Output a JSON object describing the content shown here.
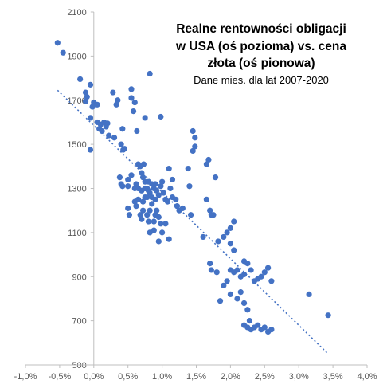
{
  "chart_data": {
    "type": "scatter",
    "title": [
      "Realne rentowności obligacji",
      "w USA (oś pozioma) vs. cena",
      "złota (oś pionowa)"
    ],
    "subtitle": "Dane mies. dla lat 2007-2020",
    "xlabel": "",
    "ylabel": "",
    "xlim": [
      -1.0,
      4.0
    ],
    "ylim": [
      500,
      2100
    ],
    "x_ticks": [
      -1.0,
      -0.5,
      0.0,
      0.5,
      1.0,
      1.5,
      2.0,
      2.5,
      3.0,
      3.5,
      4.0
    ],
    "x_tick_labels": [
      "-1,0%",
      "-0,5%",
      "0,0%",
      "0,5%",
      "1,0%",
      "1,5%",
      "2,0%",
      "2,5%",
      "3,0%",
      "3,5%",
      "4,0%"
    ],
    "y_ticks": [
      500,
      700,
      900,
      1100,
      1300,
      1500,
      1700,
      1900,
      2100
    ],
    "y_tick_labels": [
      "500",
      "700",
      "900",
      "1100",
      "1300",
      "1500",
      "1700",
      "1900",
      "2100"
    ],
    "grid": false,
    "colors": {
      "points": "#4472C4",
      "trendline": "#4472C4",
      "axis": "#BFBFBF"
    },
    "trendline": {
      "type": "linear",
      "style": "dotted",
      "x": [
        -0.53,
        3.43
      ],
      "y": [
        1745,
        550
      ]
    },
    "points": [
      [
        -0.53,
        1960
      ],
      [
        -0.45,
        1915
      ],
      [
        -0.2,
        1795
      ],
      [
        -0.12,
        1735
      ],
      [
        -0.1,
        1715
      ],
      [
        -0.12,
        1695
      ],
      [
        -0.05,
        1770
      ],
      [
        -0.05,
        1620
      ],
      [
        0.0,
        1690
      ],
      [
        -0.02,
        1670
      ],
      [
        0.05,
        1680
      ],
      [
        0.05,
        1600
      ],
      [
        0.08,
        1570
      ],
      [
        0.1,
        1590
      ],
      [
        0.12,
        1560
      ],
      [
        0.15,
        1600
      ],
      [
        0.18,
        1580
      ],
      [
        0.2,
        1595
      ],
      [
        0.22,
        1540
      ],
      [
        0.28,
        1735
      ],
      [
        0.33,
        1680
      ],
      [
        0.35,
        1700
      ],
      [
        0.3,
        1530
      ],
      [
        0.4,
        1500
      ],
      [
        0.42,
        1570
      ],
      [
        0.43,
        1475
      ],
      [
        0.45,
        1480
      ],
      [
        0.55,
        1710
      ],
      [
        0.55,
        1750
      ],
      [
        0.58,
        1650
      ],
      [
        0.6,
        1690
      ],
      [
        0.63,
        1560
      ],
      [
        0.75,
        1620
      ],
      [
        0.82,
        1820
      ],
      [
        0.98,
        1625
      ],
      [
        -0.05,
        1475
      ],
      [
        0.4,
        1320
      ],
      [
        0.38,
        1350
      ],
      [
        0.42,
        1310
      ],
      [
        0.5,
        1340
      ],
      [
        0.55,
        1360
      ],
      [
        0.5,
        1210
      ],
      [
        0.52,
        1180
      ],
      [
        0.5,
        1310
      ],
      [
        0.6,
        1300
      ],
      [
        0.62,
        1320
      ],
      [
        0.65,
        1410
      ],
      [
        0.68,
        1400
      ],
      [
        0.7,
        1370
      ],
      [
        0.72,
        1350
      ],
      [
        0.73,
        1410
      ],
      [
        0.75,
        1330
      ],
      [
        0.78,
        1300
      ],
      [
        0.8,
        1290
      ],
      [
        0.82,
        1280
      ],
      [
        0.85,
        1320
      ],
      [
        0.88,
        1300
      ],
      [
        0.9,
        1320
      ],
      [
        0.92,
        1290
      ],
      [
        0.95,
        1270
      ],
      [
        0.98,
        1310
      ],
      [
        1.0,
        1330
      ],
      [
        1.02,
        1280
      ],
      [
        1.05,
        1250
      ],
      [
        1.08,
        1240
      ],
      [
        1.1,
        1390
      ],
      [
        1.12,
        1300
      ],
      [
        1.15,
        1260
      ],
      [
        1.2,
        1250
      ],
      [
        1.22,
        1220
      ],
      [
        1.25,
        1200
      ],
      [
        1.3,
        1210
      ],
      [
        0.62,
        1220
      ],
      [
        0.65,
        1250
      ],
      [
        0.68,
        1180
      ],
      [
        0.7,
        1160
      ],
      [
        0.72,
        1200
      ],
      [
        0.75,
        1260
      ],
      [
        0.78,
        1180
      ],
      [
        0.8,
        1150
      ],
      [
        0.82,
        1200
      ],
      [
        0.85,
        1230
      ],
      [
        0.88,
        1150
      ],
      [
        0.9,
        1180
      ],
      [
        0.92,
        1200
      ],
      [
        0.95,
        1170
      ],
      [
        0.98,
        1140
      ],
      [
        0.85,
        1260
      ],
      [
        0.9,
        1250
      ],
      [
        0.8,
        1330
      ],
      [
        0.82,
        1100
      ],
      [
        0.88,
        1110
      ],
      [
        0.95,
        1060
      ],
      [
        1.0,
        1100
      ],
      [
        1.05,
        1140
      ],
      [
        1.1,
        1070
      ],
      [
        1.15,
        1340
      ],
      [
        0.7,
        1290
      ],
      [
        0.72,
        1240
      ],
      [
        0.78,
        1260
      ],
      [
        0.75,
        1300
      ],
      [
        0.65,
        1300
      ],
      [
        0.6,
        1240
      ],
      [
        1.38,
        1390
      ],
      [
        1.4,
        1310
      ],
      [
        1.42,
        1180
      ],
      [
        1.45,
        1560
      ],
      [
        1.48,
        1530
      ],
      [
        1.45,
        1470
      ],
      [
        1.48,
        1490
      ],
      [
        1.65,
        1410
      ],
      [
        1.68,
        1430
      ],
      [
        1.65,
        1250
      ],
      [
        1.7,
        1200
      ],
      [
        1.72,
        1180
      ],
      [
        1.75,
        1180
      ],
      [
        1.78,
        1350
      ],
      [
        1.6,
        1080
      ],
      [
        1.82,
        1060
      ],
      [
        1.9,
        1080
      ],
      [
        1.95,
        1100
      ],
      [
        2.0,
        1120
      ],
      [
        2.05,
        1150
      ],
      [
        2.0,
        1050
      ],
      [
        2.05,
        1020
      ],
      [
        1.7,
        960
      ],
      [
        1.72,
        930
      ],
      [
        1.8,
        920
      ],
      [
        1.85,
        790
      ],
      [
        1.9,
        860
      ],
      [
        1.95,
        880
      ],
      [
        2.0,
        930
      ],
      [
        2.05,
        920
      ],
      [
        2.1,
        930
      ],
      [
        2.15,
        900
      ],
      [
        2.2,
        910
      ],
      [
        2.2,
        970
      ],
      [
        2.25,
        960
      ],
      [
        2.3,
        930
      ],
      [
        2.0,
        820
      ],
      [
        2.1,
        800
      ],
      [
        2.15,
        830
      ],
      [
        2.2,
        780
      ],
      [
        2.25,
        750
      ],
      [
        2.35,
        880
      ],
      [
        2.4,
        890
      ],
      [
        2.45,
        900
      ],
      [
        2.5,
        920
      ],
      [
        2.55,
        940
      ],
      [
        2.6,
        880
      ],
      [
        2.2,
        680
      ],
      [
        2.25,
        670
      ],
      [
        2.3,
        660
      ],
      [
        2.35,
        670
      ],
      [
        2.4,
        680
      ],
      [
        2.45,
        660
      ],
      [
        2.5,
        670
      ],
      [
        2.55,
        650
      ],
      [
        2.6,
        660
      ],
      [
        2.28,
        700
      ],
      [
        3.15,
        820
      ],
      [
        3.43,
        725
      ]
    ]
  }
}
